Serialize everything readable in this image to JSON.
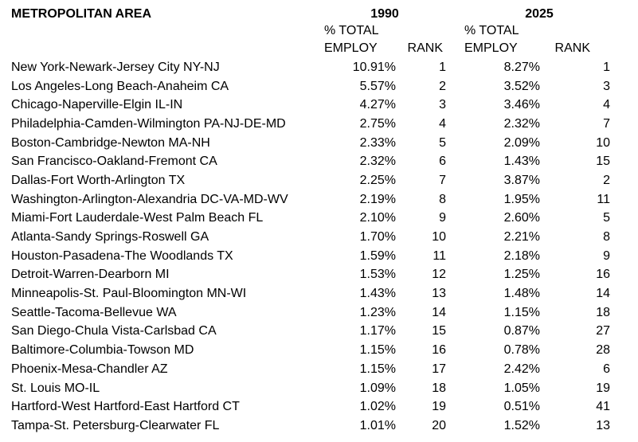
{
  "header": {
    "metro_col": "METROPOLITAN AREA",
    "year_1990": "1990",
    "year_2025": "2025",
    "pct_total_line1": "% TOTAL",
    "pct_total_line2": "EMPLOY",
    "rank": "RANK"
  },
  "colors": {
    "text": "#000000",
    "background": "#ffffff"
  },
  "chart_data": {
    "type": "table",
    "columns": [
      "METROPOLITAN AREA",
      "1990 % TOTAL EMPLOY",
      "1990 RANK",
      "2025 % TOTAL EMPLOY",
      "2025 RANK"
    ],
    "rows": [
      {
        "name": "New York-Newark-Jersey City NY-NJ",
        "pct_1990": "10.91%",
        "rank_1990": "1",
        "pct_2025": "8.27%",
        "rank_2025": "1"
      },
      {
        "name": "Los Angeles-Long Beach-Anaheim CA",
        "pct_1990": "5.57%",
        "rank_1990": "2",
        "pct_2025": "3.52%",
        "rank_2025": "3"
      },
      {
        "name": "Chicago-Naperville-Elgin IL-IN",
        "pct_1990": "4.27%",
        "rank_1990": "3",
        "pct_2025": "3.46%",
        "rank_2025": "4"
      },
      {
        "name": "Philadelphia-Camden-Wilmington PA-NJ-DE-MD",
        "pct_1990": "2.75%",
        "rank_1990": "4",
        "pct_2025": "2.32%",
        "rank_2025": "7"
      },
      {
        "name": "Boston-Cambridge-Newton MA-NH",
        "pct_1990": "2.33%",
        "rank_1990": "5",
        "pct_2025": "2.09%",
        "rank_2025": "10"
      },
      {
        "name": "San Francisco-Oakland-Fremont CA",
        "pct_1990": "2.32%",
        "rank_1990": "6",
        "pct_2025": "1.43%",
        "rank_2025": "15"
      },
      {
        "name": "Dallas-Fort Worth-Arlington TX",
        "pct_1990": "2.25%",
        "rank_1990": "7",
        "pct_2025": "3.87%",
        "rank_2025": "2"
      },
      {
        "name": "Washington-Arlington-Alexandria DC-VA-MD-WV",
        "pct_1990": "2.19%",
        "rank_1990": "8",
        "pct_2025": "1.95%",
        "rank_2025": "11"
      },
      {
        "name": "Miami-Fort Lauderdale-West Palm Beach FL",
        "pct_1990": "2.10%",
        "rank_1990": "9",
        "pct_2025": "2.60%",
        "rank_2025": "5"
      },
      {
        "name": "Atlanta-Sandy Springs-Roswell GA",
        "pct_1990": "1.70%",
        "rank_1990": "10",
        "pct_2025": "2.21%",
        "rank_2025": "8"
      },
      {
        "name": "Houston-Pasadena-The Woodlands TX",
        "pct_1990": "1.59%",
        "rank_1990": "11",
        "pct_2025": "2.18%",
        "rank_2025": "9"
      },
      {
        "name": "Detroit-Warren-Dearborn MI",
        "pct_1990": "1.53%",
        "rank_1990": "12",
        "pct_2025": "1.25%",
        "rank_2025": "16"
      },
      {
        "name": "Minneapolis-St. Paul-Bloomington MN-WI",
        "pct_1990": "1.43%",
        "rank_1990": "13",
        "pct_2025": "1.48%",
        "rank_2025": "14"
      },
      {
        "name": "Seattle-Tacoma-Bellevue WA",
        "pct_1990": "1.23%",
        "rank_1990": "14",
        "pct_2025": "1.15%",
        "rank_2025": "18"
      },
      {
        "name": "San Diego-Chula Vista-Carlsbad CA",
        "pct_1990": "1.17%",
        "rank_1990": "15",
        "pct_2025": "0.87%",
        "rank_2025": "27"
      },
      {
        "name": "Baltimore-Columbia-Towson MD",
        "pct_1990": "1.15%",
        "rank_1990": "16",
        "pct_2025": "0.78%",
        "rank_2025": "28"
      },
      {
        "name": "Phoenix-Mesa-Chandler AZ",
        "pct_1990": "1.15%",
        "rank_1990": "17",
        "pct_2025": "2.42%",
        "rank_2025": "6"
      },
      {
        "name": "St. Louis MO-IL",
        "pct_1990": "1.09%",
        "rank_1990": "18",
        "pct_2025": "1.05%",
        "rank_2025": "19"
      },
      {
        "name": "Hartford-West Hartford-East Hartford CT",
        "pct_1990": "1.02%",
        "rank_1990": "19",
        "pct_2025": "0.51%",
        "rank_2025": "41"
      },
      {
        "name": "Tampa-St. Petersburg-Clearwater FL",
        "pct_1990": "1.01%",
        "rank_1990": "20",
        "pct_2025": "1.52%",
        "rank_2025": "13"
      }
    ]
  }
}
